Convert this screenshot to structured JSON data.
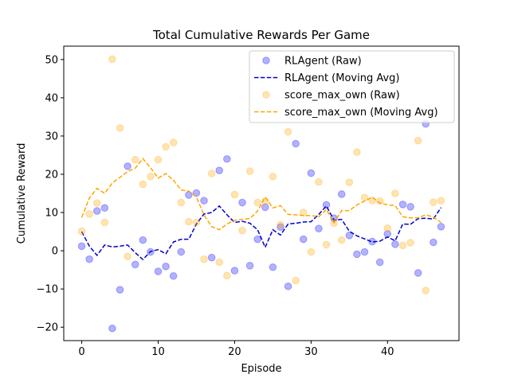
{
  "chart_data": {
    "type": "scatter",
    "title": "Total Cumulative Rewards Per Game",
    "xlabel": "Episode",
    "ylabel": "Cumulative Reward",
    "xlim": [
      -2.35,
      49.35
    ],
    "ylim": [
      -23.5,
      53.5
    ],
    "xticks": [
      0,
      10,
      20,
      30,
      40
    ],
    "yticks": [
      -20,
      -10,
      0,
      10,
      20,
      30,
      40,
      50
    ],
    "grid": false,
    "legend_position": "top-right",
    "x": [
      0,
      1,
      2,
      3,
      4,
      5,
      6,
      7,
      8,
      9,
      10,
      11,
      12,
      13,
      14,
      15,
      16,
      17,
      18,
      19,
      20,
      21,
      22,
      23,
      24,
      25,
      26,
      27,
      28,
      29,
      30,
      31,
      32,
      33,
      34,
      35,
      36,
      37,
      38,
      39,
      40,
      41,
      42,
      43,
      44,
      45,
      46,
      47
    ],
    "series": [
      {
        "name": "RLAgent (Raw)",
        "kind": "scatter",
        "color": "#0000ff",
        "values": [
          1.2,
          -2.2,
          10.4,
          11.2,
          -20.3,
          -10.2,
          22.1,
          -3.6,
          2.8,
          -0.3,
          -5.4,
          -4.1,
          -6.6,
          -0.3,
          14.6,
          15.1,
          13.1,
          -1.8,
          21.0,
          24.0,
          -5.2,
          12.6,
          -3.9,
          3.0,
          11.4,
          -4.3,
          6.2,
          -9.3,
          28.0,
          3.0,
          20.3,
          5.8,
          12.0,
          8.5,
          14.8,
          4.0,
          -0.9,
          -0.3,
          2.4,
          -3.0,
          4.4,
          1.7,
          12.1,
          11.5,
          -5.8,
          33.2,
          2.2,
          6.3
        ]
      },
      {
        "name": "RLAgent (Moving Avg)",
        "kind": "line",
        "dash": true,
        "color": "#0000cc",
        "values": [
          5.0,
          1.2,
          -1.2,
          1.5,
          1.0,
          1.2,
          1.5,
          -0.5,
          -2.3,
          -0.2,
          0.3,
          -0.8,
          2.3,
          3.0,
          3.0,
          7.0,
          9.6,
          10.0,
          11.7,
          9.4,
          7.4,
          7.7,
          7.2,
          5.5,
          0.9,
          5.5,
          4.1,
          7.0,
          7.2,
          7.5,
          7.6,
          9.5,
          11.7,
          8.0,
          8.2,
          5.1,
          3.9,
          3.1,
          2.3,
          2.5,
          3.6,
          2.6,
          7.0,
          6.9,
          8.4,
          8.5,
          8.3,
          11.3
        ]
      },
      {
        "name": "score_max_own (Raw)",
        "kind": "scatter",
        "color": "#ffa500",
        "values": [
          5.1,
          9.6,
          12.5,
          7.4,
          50.1,
          32.1,
          -1.5,
          23.8,
          17.4,
          19.4,
          23.8,
          27.2,
          28.3,
          12.6,
          7.6,
          7.4,
          -2.2,
          20.2,
          -3.0,
          -6.5,
          14.7,
          5.3,
          20.8,
          12.6,
          13.0,
          19.4,
          6.8,
          31.1,
          -7.8,
          10.0,
          -0.3,
          18.0,
          1.6,
          7.2,
          2.8,
          17.9,
          25.8,
          13.9,
          13.1,
          13.0,
          5.9,
          15.0,
          1.4,
          2.1,
          28.8,
          -10.4,
          12.7,
          13.1
        ]
      },
      {
        "name": "score_max_own (Moving Avg)",
        "kind": "line",
        "dash": true,
        "color": "#ffa500",
        "values": [
          8.7,
          13.8,
          16.3,
          15.0,
          17.7,
          19.2,
          20.7,
          21.6,
          24.1,
          21.7,
          19.0,
          20.2,
          18.4,
          15.9,
          15.6,
          14.1,
          9.3,
          6.3,
          5.5,
          7.0,
          8.0,
          8.2,
          8.4,
          10.4,
          14.0,
          11.2,
          11.8,
          9.5,
          9.4,
          9.2,
          9.2,
          8.9,
          10.8,
          7.3,
          10.5,
          10.5,
          12.0,
          13.0,
          14.0,
          12.5,
          12.0,
          11.8,
          8.9,
          8.6,
          8.6,
          9.4,
          8.8,
          7.4
        ]
      }
    ]
  }
}
